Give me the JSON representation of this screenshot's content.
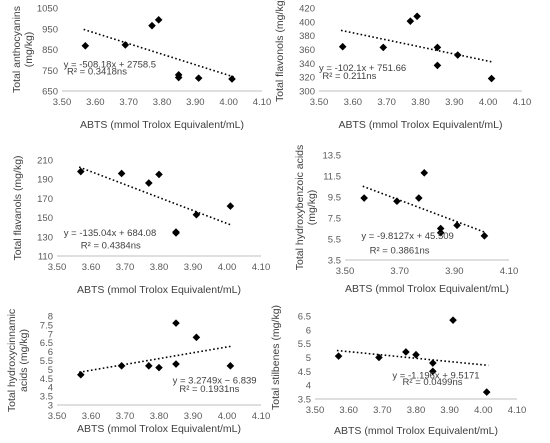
{
  "chart_data": [
    {
      "type": "scatter",
      "xlabel": "ABTS (mmol Trolox Equivalent/mL)",
      "ylabel": "Total anthocyanins (mg/kg)",
      "xlim": [
        3.5,
        4.1
      ],
      "ylim": [
        650,
        1050
      ],
      "xticks": [
        "3.50",
        "3.60",
        "3.70",
        "3.80",
        "3.90",
        "4.00",
        "4.10"
      ],
      "yticks": [
        "650",
        "750",
        "850",
        "950",
        "1050"
      ],
      "x": [
        3.57,
        3.69,
        3.77,
        3.79,
        3.85,
        3.85,
        3.91,
        4.01
      ],
      "y": [
        868,
        872,
        965,
        993,
        728,
        715,
        712,
        708
      ],
      "trendline": {
        "slope": -508.18,
        "intercept": 2758.5
      },
      "equation": "y = -508.18x + 2758.5",
      "r2": "R² = 0.3418ns",
      "eq_pos": {
        "x": 3.505,
        "y": 764
      },
      "r2_pos": {
        "x": 3.515,
        "y": 730
      },
      "marker": "diamond",
      "grid": false,
      "legend": "none"
    },
    {
      "type": "scatter",
      "xlabel": "ABTS (mmol Trolox Equivalent/mL)",
      "ylabel": "Total flavonols (mg/kg)",
      "xlim": [
        3.5,
        4.1
      ],
      "ylim": [
        300,
        420
      ],
      "xticks": [
        "3.50",
        "3.60",
        "3.70",
        "3.80",
        "3.90",
        "4.00",
        "4.10"
      ],
      "yticks": [
        "300",
        "320",
        "340",
        "360",
        "380",
        "400",
        "420"
      ],
      "x": [
        3.57,
        3.69,
        3.77,
        3.79,
        3.85,
        3.85,
        3.91,
        4.01
      ],
      "y": [
        364,
        363,
        401,
        408,
        363,
        337,
        352,
        318
      ],
      "trendline": {
        "slope": -102.1,
        "intercept": 751.66
      },
      "equation": "y = -102.1x + 751.66",
      "r2": "R² = 0.211ns",
      "eq_pos": {
        "x": 3.5,
        "y": 329
      },
      "r2_pos": {
        "x": 3.51,
        "y": 317
      },
      "marker": "diamond",
      "grid": false,
      "legend": "none"
    },
    {
      "type": "scatter",
      "xlabel": "ABTS (mmol Trolox Equivalent/mL)",
      "ylabel": "Total flavanols (mg/kg)",
      "xlim": [
        3.5,
        4.1
      ],
      "ylim": [
        110,
        210
      ],
      "xticks": [
        "3.50",
        "3.60",
        "3.70",
        "3.80",
        "3.90",
        "4.00",
        "4.10"
      ],
      "yticks": [
        "110",
        "130",
        "150",
        "170",
        "190",
        "210"
      ],
      "x": [
        3.57,
        3.69,
        3.77,
        3.8,
        3.85,
        3.85,
        3.91,
        4.01
      ],
      "y": [
        198,
        196,
        186,
        195,
        135,
        134,
        153,
        162
      ],
      "trendline": {
        "slope": -135.04,
        "intercept": 684.08
      },
      "equation": "y = -135.04x + 684.08",
      "r2": "R² = 0.4384ns",
      "eq_pos": {
        "x": 3.52,
        "y": 131
      },
      "r2_pos": {
        "x": 3.57,
        "y": 118
      },
      "marker": "diamond",
      "grid": false,
      "legend": "none"
    },
    {
      "type": "scatter",
      "xlabel": "ABTS (mmol Trolox Equivalent/mL)",
      "ylabel": "Total hydroxybenzoic acids (mg/kg)",
      "xlim": [
        3.5,
        4.1
      ],
      "ylim": [
        3.5,
        13.5
      ],
      "xticks": [
        "3.50",
        "3.70",
        "3.90",
        "4.10"
      ],
      "yticks": [
        "3.5",
        "5.5",
        "7.5",
        "9.5",
        "11.5",
        "13.5"
      ],
      "x": [
        3.57,
        3.69,
        3.77,
        3.79,
        3.85,
        3.85,
        3.91,
        4.01
      ],
      "y": [
        9.4,
        9.1,
        9.4,
        11.8,
        6.5,
        6.1,
        6.8,
        5.8
      ],
      "trendline": {
        "slope": -9.8127,
        "intercept": 45.509
      },
      "equation": "y = -9.8127x + 45.509",
      "r2": "R² = 0.3861ns",
      "eq_pos": {
        "x": 3.56,
        "y": 5.5
      },
      "r2_pos": {
        "x": 3.59,
        "y": 4.1
      },
      "marker": "diamond",
      "grid": false,
      "legend": "none"
    },
    {
      "type": "scatter",
      "xlabel": "ABTS (mmol Trolox Equivalent/mL)",
      "ylabel": "Total hydroxycinnamic acids (mg/kg)",
      "xlim": [
        3.5,
        4.1
      ],
      "ylim": [
        3,
        8
      ],
      "xticks": [
        "3.50",
        "3.60",
        "3.70",
        "3.80",
        "3.90",
        "4.00",
        "4.10"
      ],
      "yticks": [
        "3",
        "3.5",
        "4",
        "4.5",
        "5",
        "5.5",
        "6",
        "6.5",
        "7",
        "7.5",
        "8"
      ],
      "x": [
        3.57,
        3.69,
        3.77,
        3.8,
        3.85,
        3.85,
        3.91,
        4.01
      ],
      "y": [
        4.7,
        5.2,
        5.2,
        5.1,
        7.6,
        5.3,
        6.8,
        5.2
      ],
      "trendline": {
        "slope": 3.2749,
        "intercept": -6.839
      },
      "equation": "y = 3.2749x − 6.839",
      "r2": "R² = 0.1931ns",
      "eq_pos": {
        "x": 3.84,
        "y": 4.2
      },
      "r2_pos": {
        "x": 3.86,
        "y": 3.72
      },
      "marker": "diamond",
      "grid": false,
      "legend": "none"
    },
    {
      "type": "scatter",
      "xlabel": "ABTS (mmol Trolox Equivalent/mL)",
      "ylabel": "Total stilbenes (mg/kg)",
      "xlim": [
        3.5,
        4.1
      ],
      "ylim": [
        3.5,
        6.5
      ],
      "xticks": [
        "3.50",
        "3.60",
        "3.70",
        "3.80",
        "3.90",
        "4.00",
        "4.10"
      ],
      "yticks": [
        "3.5",
        "4",
        "4.5",
        "5",
        "5.5",
        "6",
        "6.5"
      ],
      "x": [
        3.57,
        3.69,
        3.77,
        3.8,
        3.85,
        3.85,
        3.91,
        4.01
      ],
      "y": [
        5.05,
        5.0,
        5.2,
        5.1,
        4.8,
        4.5,
        6.35,
        3.75
      ],
      "trendline": {
        "slope": -1.196,
        "intercept": 9.5171
      },
      "equation": "y = -1.196x + 9.5171",
      "r2": "R² = 0.0499ns",
      "eq_pos": {
        "x": 3.73,
        "y": 4.25
      },
      "r2_pos": {
        "x": 3.76,
        "y": 4.0
      },
      "marker": "diamond",
      "grid": false,
      "legend": "none"
    }
  ]
}
